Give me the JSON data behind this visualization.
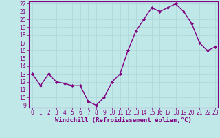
{
  "x": [
    0,
    1,
    2,
    3,
    4,
    5,
    6,
    7,
    8,
    9,
    10,
    11,
    12,
    13,
    14,
    15,
    16,
    17,
    18,
    19,
    20,
    21,
    22,
    23
  ],
  "y": [
    13,
    11.5,
    13,
    12,
    11.8,
    11.5,
    11.5,
    9.5,
    9,
    10,
    12,
    13,
    16,
    18.5,
    20,
    21.5,
    21,
    21.5,
    22,
    21,
    19.5,
    17,
    16,
    16.5
  ],
  "line_color": "#800080",
  "marker": "D",
  "marker_size": 2.0,
  "bg_color": "#c0e8e8",
  "grid_color": "#b0d8d8",
  "xlabel": "Windchill (Refroidissement éolien,°C)",
  "xlabel_color": "#800080",
  "tick_color": "#800080",
  "spine_color": "#800080",
  "ylim_min": 9,
  "ylim_max": 22,
  "xlim_min": 0,
  "xlim_max": 23,
  "yticks": [
    9,
    10,
    11,
    12,
    13,
    14,
    15,
    16,
    17,
    18,
    19,
    20,
    21,
    22
  ],
  "xticks": [
    0,
    1,
    2,
    3,
    4,
    5,
    6,
    7,
    8,
    9,
    10,
    11,
    12,
    13,
    14,
    15,
    16,
    17,
    18,
    19,
    20,
    21,
    22,
    23
  ],
  "line_width": 1.0,
  "tick_fontsize": 5.5,
  "xlabel_fontsize": 6.5
}
